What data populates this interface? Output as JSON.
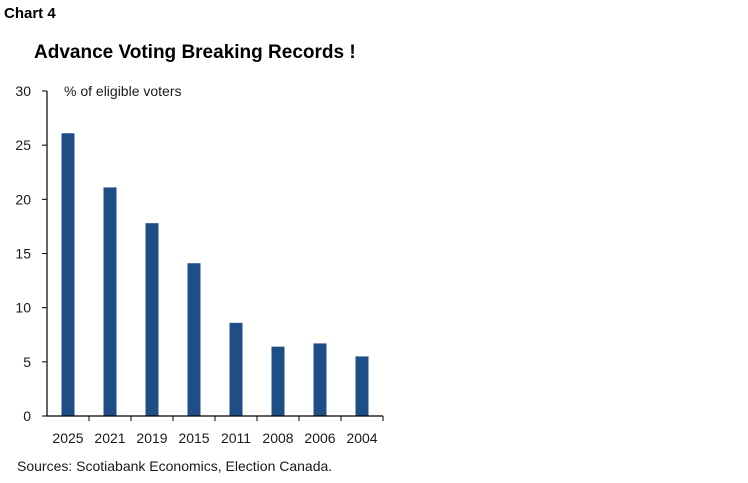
{
  "chart_label": "Chart 4",
  "chart_data": {
    "type": "bar",
    "title": "Advance Voting Breaking Records !",
    "ylabel": "% of eligible voters",
    "xlabel": "",
    "categories": [
      "2025",
      "2021",
      "2019",
      "2015",
      "2011",
      "2008",
      "2006",
      "2004"
    ],
    "values": [
      26.1,
      21.1,
      17.8,
      14.1,
      8.6,
      6.4,
      6.7,
      5.5
    ],
    "ylim": [
      0,
      30
    ],
    "yticks": [
      0,
      5,
      10,
      15,
      20,
      25,
      30
    ],
    "bar_color": "#1f4e86",
    "grid": false,
    "legend": "none"
  },
  "source": "Sources: Scotiabank Economics, Election Canada."
}
